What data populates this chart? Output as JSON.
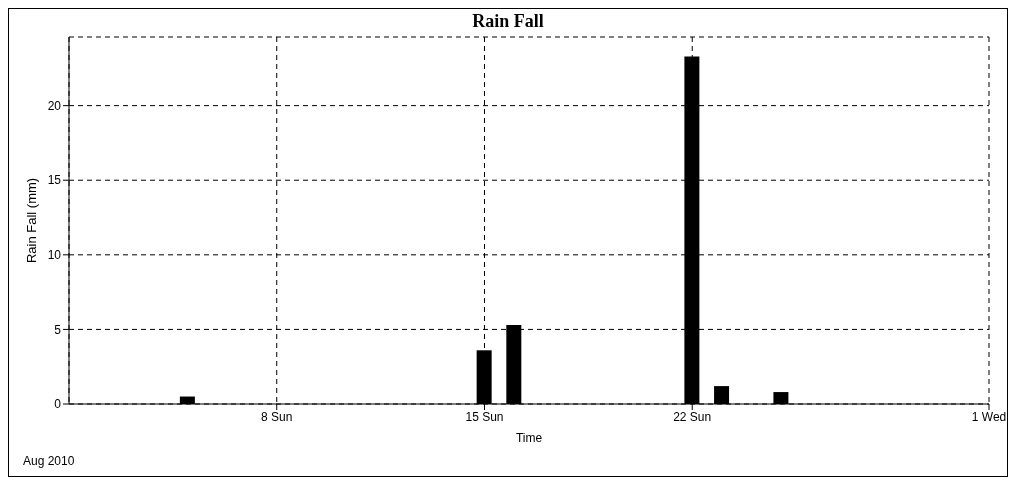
{
  "chart_data": {
    "type": "bar",
    "title": "Rain Fall",
    "xlabel": "Time",
    "ylabel": "Rain Fall (mm)",
    "annotations": [
      "Aug 2010"
    ],
    "x": [
      "2010-08-05",
      "2010-08-15",
      "2010-08-16",
      "2010-08-22",
      "2010-08-23",
      "2010-08-25"
    ],
    "values": [
      0.5,
      3.6,
      5.3,
      23.3,
      1.2,
      0.8
    ],
    "color": "#000000",
    "xlim": [
      "2010-08-01",
      "2010-09-01"
    ],
    "xticks": [
      {
        "value": "2010-08-08",
        "label": "8 Sun"
      },
      {
        "value": "2010-08-15",
        "label": "15 Sun"
      },
      {
        "value": "2010-08-22",
        "label": "22 Sun"
      },
      {
        "value": "2010-09-01",
        "label": "1 Wed"
      }
    ],
    "ylim": [
      0,
      24.6
    ],
    "yticks": [
      0,
      5,
      10,
      15,
      20
    ],
    "grid": true
  }
}
